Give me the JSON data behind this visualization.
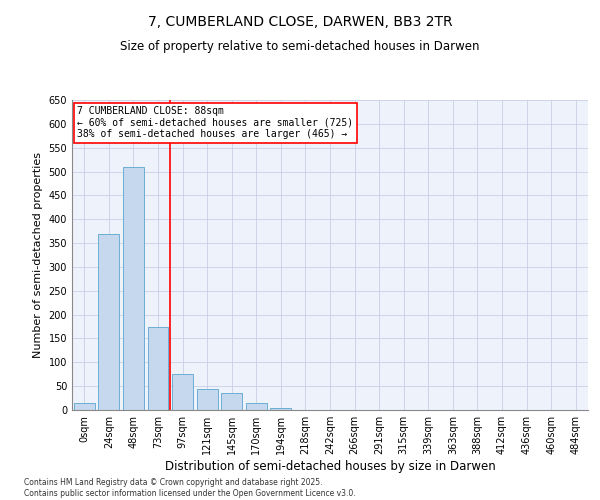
{
  "title_line1": "7, CUMBERLAND CLOSE, DARWEN, BB3 2TR",
  "title_line2": "Size of property relative to semi-detached houses in Darwen",
  "xlabel": "Distribution of semi-detached houses by size in Darwen",
  "ylabel": "Number of semi-detached properties",
  "footnote": "Contains HM Land Registry data © Crown copyright and database right 2025.\nContains public sector information licensed under the Open Government Licence v3.0.",
  "bin_labels": [
    "0sqm",
    "24sqm",
    "48sqm",
    "73sqm",
    "97sqm",
    "121sqm",
    "145sqm",
    "170sqm",
    "194sqm",
    "218sqm",
    "242sqm",
    "266sqm",
    "291sqm",
    "315sqm",
    "339sqm",
    "363sqm",
    "388sqm",
    "412sqm",
    "436sqm",
    "460sqm",
    "484sqm"
  ],
  "bar_values": [
    15,
    370,
    510,
    175,
    75,
    45,
    35,
    15,
    5,
    1,
    0,
    0,
    0,
    0,
    0,
    0,
    1,
    0,
    0,
    0,
    0
  ],
  "bar_color": "#c5d8ee",
  "bar_edge_color": "#6baed6",
  "vline_x": 3.5,
  "property_line_label": "7 CUMBERLAND CLOSE: 88sqm",
  "annotation_line2": "← 60% of semi-detached houses are smaller (725)",
  "annotation_line3": "38% of semi-detached houses are larger (465) →",
  "vline_color": "red",
  "ylim": [
    0,
    650
  ],
  "yticks": [
    0,
    50,
    100,
    150,
    200,
    250,
    300,
    350,
    400,
    450,
    500,
    550,
    600,
    650
  ],
  "background_color": "#eef2fb",
  "grid_color": "#c8d0e8",
  "title_fontsize": 10,
  "subtitle_fontsize": 8.5,
  "ylabel_fontsize": 8,
  "xlabel_fontsize": 8.5,
  "tick_fontsize": 7,
  "annotation_fontsize": 7,
  "footnote_fontsize": 5.5
}
